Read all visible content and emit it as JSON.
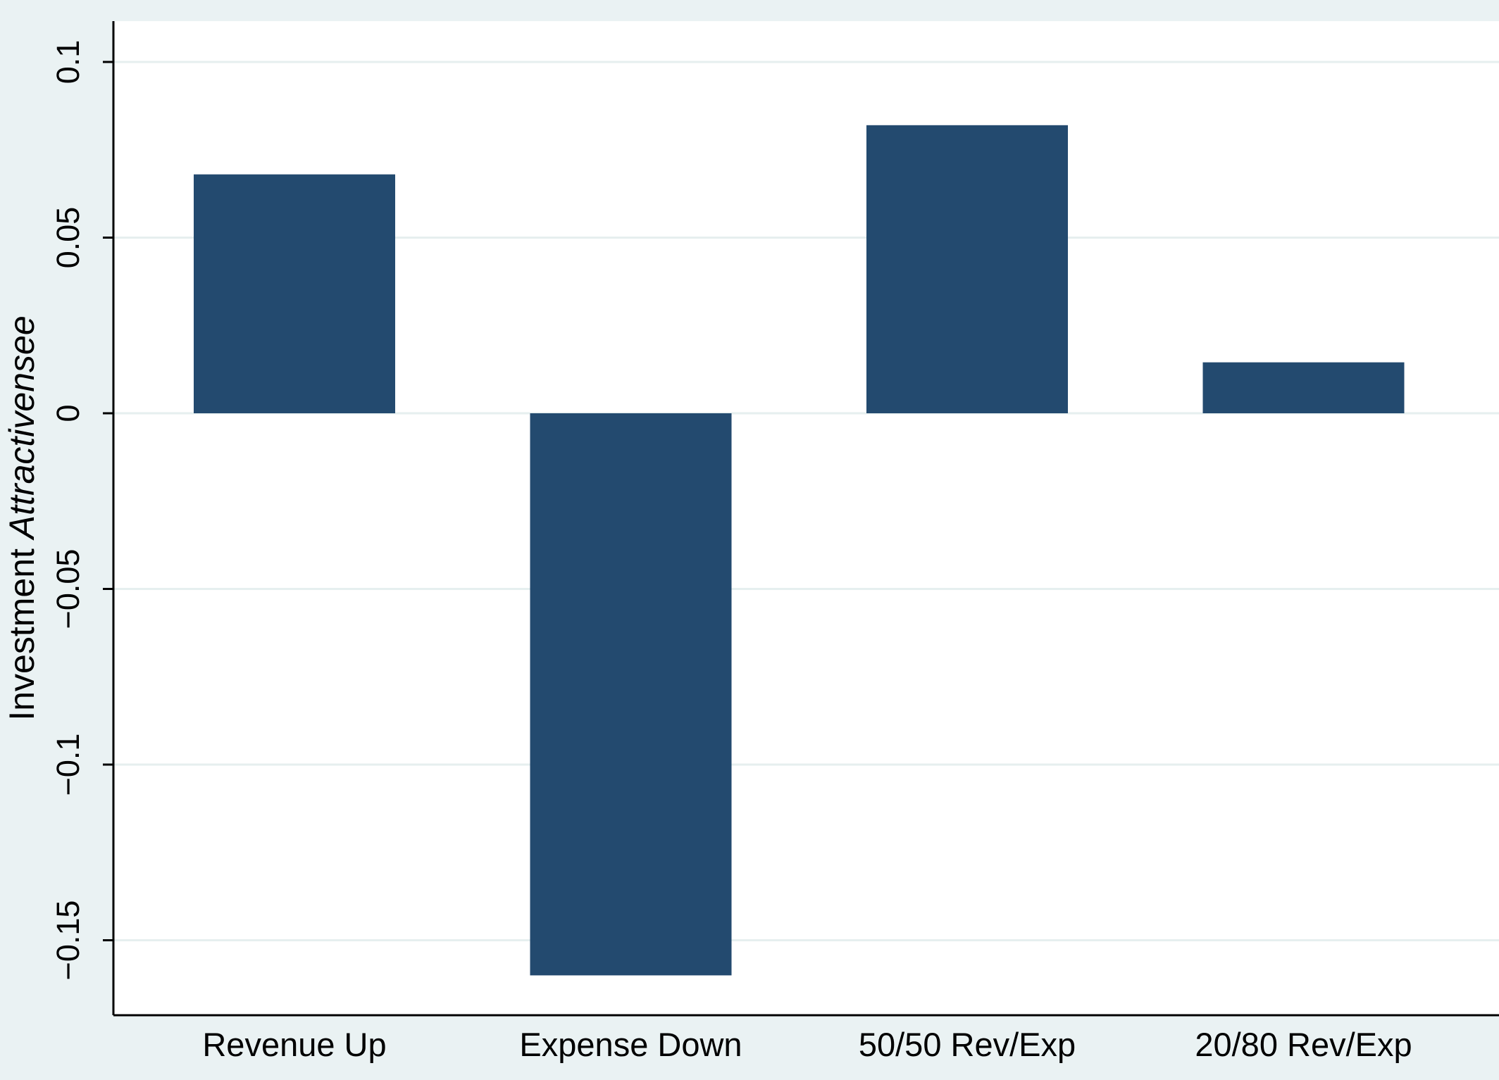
{
  "chart_data": {
    "type": "bar",
    "categories": [
      "Revenue Up",
      "Expense Down",
      "50/50 Rev/Exp",
      "20/80 Rev/Exp"
    ],
    "values": [
      0.068,
      -0.16,
      0.082,
      0.0145
    ],
    "ylabel_plain": "Investment ",
    "ylabel_italic": "Attractivensee",
    "xlabel": "",
    "ylim": [
      -0.17,
      0.113
    ],
    "yticks": [
      0.1,
      0.05,
      0,
      -0.05,
      -0.1,
      -0.15
    ],
    "ytick_labels": [
      "0.1",
      "0.05",
      "0",
      "−0.05",
      "−0.1",
      "−0.15"
    ],
    "grid": true,
    "legend": "none",
    "colors": {
      "bar": "#234a6f",
      "background": "#eaf2f3",
      "plot_area": "#ffffff",
      "grid": "#e6efef"
    }
  }
}
